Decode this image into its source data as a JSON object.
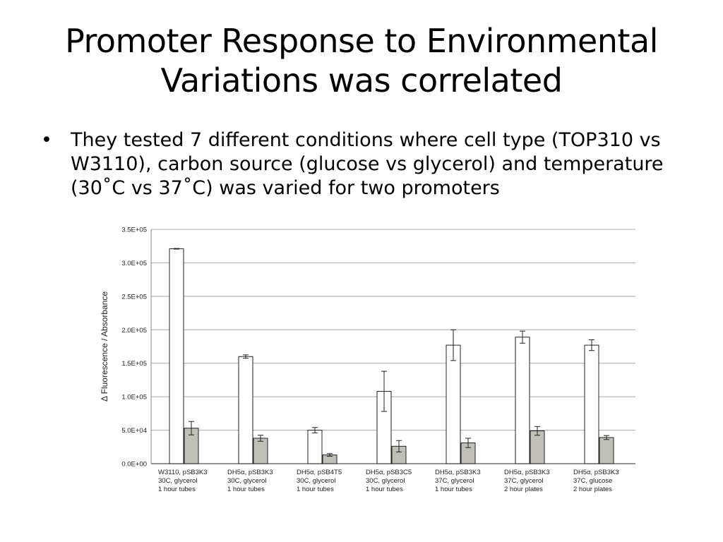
{
  "slide": {
    "title_line1": "Promoter Response to Environmental",
    "title_line2": "Variations was correlated",
    "bullets": [
      "They tested 7 different conditions where cell type (TOP310 vs W3110), carbon source (glucose vs glycerol) and temperature (30˚C vs 37˚C) was varied for two promoters"
    ],
    "bullet_symbol": "•"
  },
  "chart_data": {
    "type": "bar",
    "ylabel": "Δ Fluorescence / Absorbance",
    "ylim": [
      0,
      350000
    ],
    "yticks": [
      0,
      50000,
      100000,
      150000,
      200000,
      250000,
      300000,
      350000
    ],
    "ytick_labels": [
      "0.0E+00",
      "5.0E+04",
      "1.0E+05",
      "1.5E+05",
      "2.0E+05",
      "2.5E+05",
      "3.0E+05",
      "3.5E+05"
    ],
    "grid": true,
    "categories": [
      [
        "W3110, pSB3K3",
        "30C, glycerol",
        "1 hour tubes"
      ],
      [
        "DH5α, pSB3K3",
        "30C, glycerol",
        "1 hour tubes"
      ],
      [
        "DH5α, pSB4T5",
        "30C, glycerol",
        "1 hour tubes"
      ],
      [
        "DH5α, pSB3C5",
        "30C, glycerol",
        "1 hour tubes"
      ],
      [
        "DH5α, pSB3K3",
        "37C, glycerol",
        "1 hour tubes"
      ],
      [
        "DH5α, pSB3K3",
        "37C, glycerol",
        "2 hour plates"
      ],
      [
        "DH5α, pSB3K3",
        "37C, glucose",
        " 2 hour plates"
      ]
    ],
    "series": [
      {
        "color": "#ffffff",
        "values": [
          321000,
          160000,
          50000,
          108000,
          177000,
          189000,
          177000
        ],
        "errors": [
          500,
          2500,
          4000,
          30000,
          23000,
          9000,
          8000
        ]
      },
      {
        "color": "#c0c0b8",
        "values": [
          53000,
          38000,
          13000,
          26000,
          31000,
          49000,
          39000
        ],
        "errors": [
          10000,
          4500,
          2000,
          8500,
          7000,
          6500,
          3000
        ]
      }
    ]
  }
}
